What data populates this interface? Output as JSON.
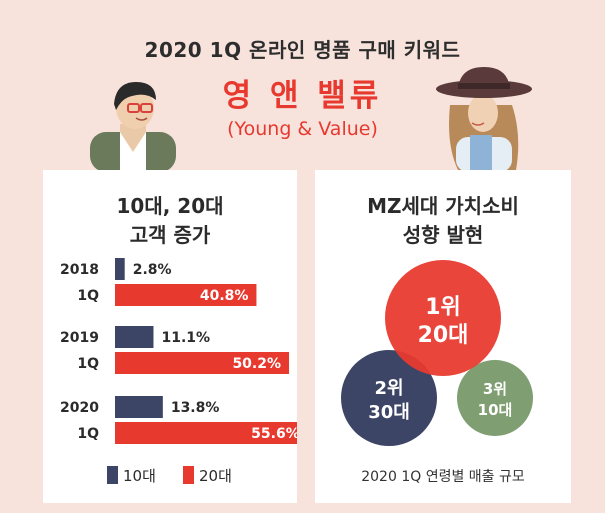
{
  "header": {
    "title": "2020 1Q 온라인 명품 구매 키워드",
    "headline": "영 앤 밸류",
    "subheadline": "(Young & Value)"
  },
  "left_panel": {
    "title_line1": "10대, 20대",
    "title_line2": "고객 증가"
  },
  "right_panel": {
    "title_line1": "MZ세대 가치소비",
    "title_line2": "성향 발현",
    "caption": "2020 1Q 연령별 매출 규모"
  },
  "colors": {
    "background": "#f7e3dc",
    "accent_red": "#e8392f",
    "navy": "#3d4566",
    "green": "#7f9e72"
  },
  "chart_data": [
    {
      "type": "bar",
      "orientation": "horizontal",
      "categories": [
        "2018\n1Q",
        "2019\n1Q",
        "2020\n1Q"
      ],
      "category_lines": [
        [
          "2018",
          "1Q"
        ],
        [
          "2019",
          "1Q"
        ],
        [
          "2020",
          "1Q"
        ]
      ],
      "series": [
        {
          "name": "10대",
          "color": "#3d4566",
          "values": [
            2.8,
            11.1,
            13.8
          ],
          "labels": [
            "2.8%",
            "11.1%",
            "13.8%"
          ]
        },
        {
          "name": "20대",
          "color": "#e8392f",
          "values": [
            40.8,
            50.2,
            55.6
          ],
          "labels": [
            "40.8%",
            "50.2%",
            "55.6%"
          ]
        }
      ],
      "xlim": [
        0,
        60
      ],
      "legend": "bottom"
    },
    {
      "type": "bubble",
      "items": [
        {
          "rank": "1위",
          "group": "20대",
          "size": 3,
          "color": "#e8392f"
        },
        {
          "rank": "2위",
          "group": "30대",
          "size": 2,
          "color": "#3d4566"
        },
        {
          "rank": "3위",
          "group": "10대",
          "size": 1,
          "color": "#7f9e72"
        }
      ]
    }
  ]
}
